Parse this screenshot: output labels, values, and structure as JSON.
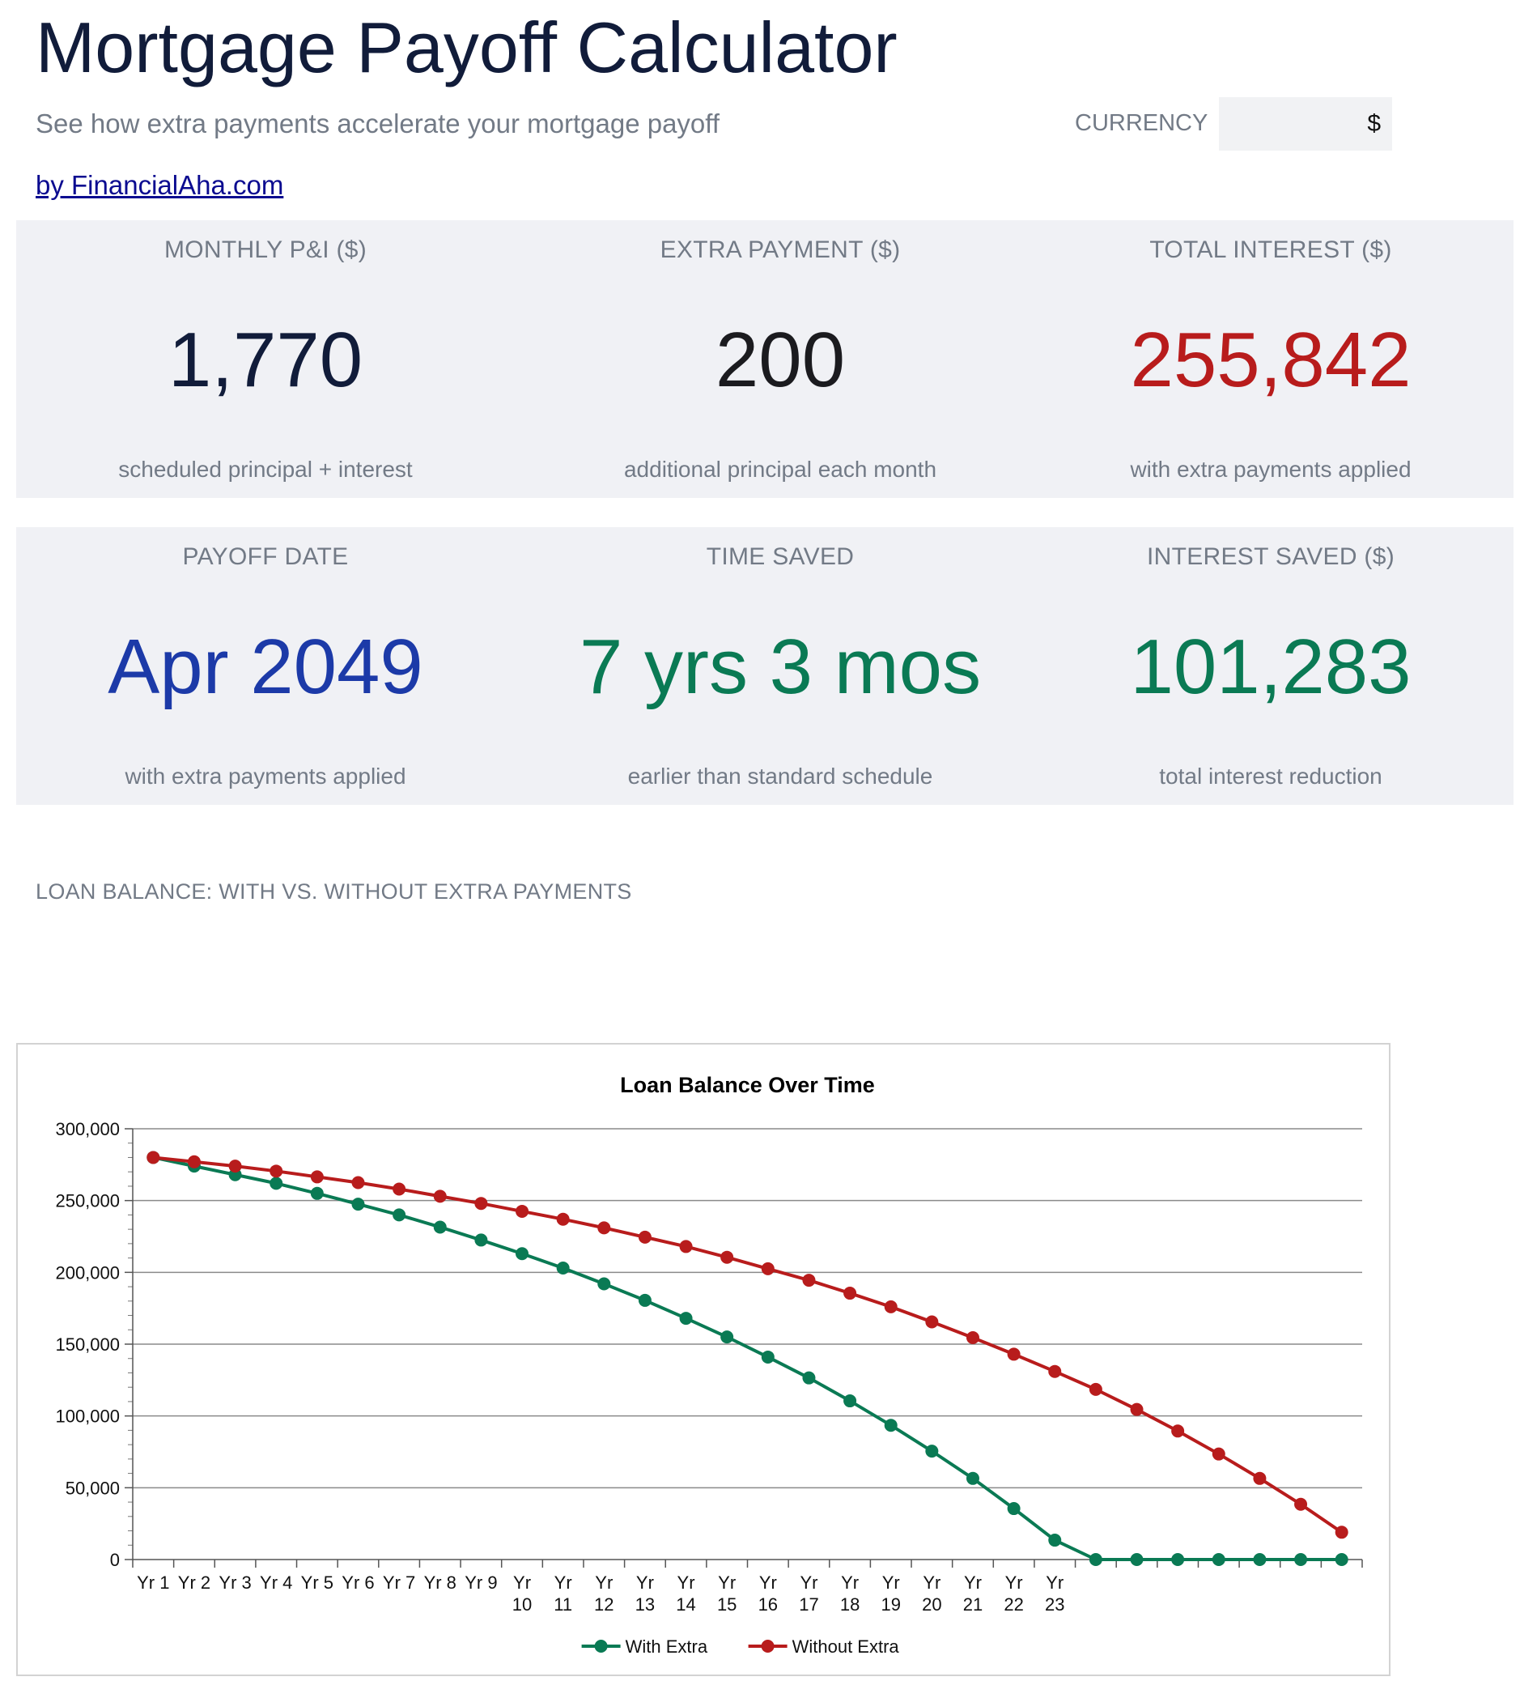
{
  "header": {
    "title": "Mortgage Payoff Calculator",
    "subtitle": "See how extra payments accelerate your mortgage payoff",
    "currency_label": "CURRENCY",
    "currency_value": "$",
    "byline": "by FinancialAha.com"
  },
  "metrics_row1": [
    {
      "label": "MONTHLY P&I ($)",
      "value": "1,770",
      "note": "scheduled principal + interest",
      "color": "#111c3a"
    },
    {
      "label": "EXTRA PAYMENT ($)",
      "value": "200",
      "note": "additional principal each month",
      "color": "#1b1b1f"
    },
    {
      "label": "TOTAL INTEREST ($)",
      "value": "255,842",
      "note": "with extra payments applied",
      "color": "#b81c1c"
    }
  ],
  "metrics_row2": [
    {
      "label": "PAYOFF DATE",
      "value": "Apr 2049",
      "note": "with extra payments applied",
      "color": "#1c3aa8"
    },
    {
      "label": "TIME SAVED",
      "value": "7 yrs 3 mos",
      "note": "earlier than standard schedule",
      "color": "#0a7a54"
    },
    {
      "label": "INTEREST SAVED ($)",
      "value": "101,283",
      "note": "total interest reduction",
      "color": "#0a7a54"
    }
  ],
  "section_title": "LOAN BALANCE: WITH VS. WITHOUT EXTRA PAYMENTS",
  "chart_data": {
    "type": "line",
    "title": "Loan Balance Over Time",
    "xlabel": "",
    "ylabel": "",
    "ylim": [
      0,
      300000
    ],
    "yticks": [
      "0",
      "50,000",
      "100,000",
      "150,000",
      "200,000",
      "250,000",
      "300,000"
    ],
    "grid": true,
    "legend": "bottom",
    "categories": [
      "Yr 1",
      "Yr 2",
      "Yr 3",
      "Yr 4",
      "Yr 5",
      "Yr 6",
      "Yr 7",
      "Yr 8",
      "Yr 9",
      "Yr 10",
      "Yr 11",
      "Yr 12",
      "Yr 13",
      "Yr 14",
      "Yr 15",
      "Yr 16",
      "Yr 17",
      "Yr 18",
      "Yr 19",
      "Yr 20",
      "Yr 21",
      "Yr 22",
      "Yr 23",
      "",
      "",
      "",
      "",
      "",
      "",
      ""
    ],
    "series": [
      {
        "name": "With Extra",
        "color": "#0a7a54",
        "values": [
          280000,
          274000,
          268000,
          262000,
          255000,
          247500,
          240000,
          231500,
          222500,
          213000,
          203000,
          192000,
          180500,
          168000,
          155000,
          141000,
          126500,
          110500,
          93500,
          75500,
          56500,
          35500,
          13500,
          0,
          0,
          0,
          0,
          0,
          0,
          0
        ]
      },
      {
        "name": "Without Extra",
        "color": "#b81c1c",
        "values": [
          280000,
          277000,
          274000,
          270500,
          266500,
          262500,
          258000,
          253000,
          248000,
          242500,
          237000,
          231000,
          224500,
          218000,
          210500,
          202500,
          194500,
          185500,
          176000,
          165500,
          154500,
          143000,
          131000,
          118500,
          104500,
          89500,
          73500,
          56500,
          38500,
          19000
        ]
      }
    ]
  }
}
